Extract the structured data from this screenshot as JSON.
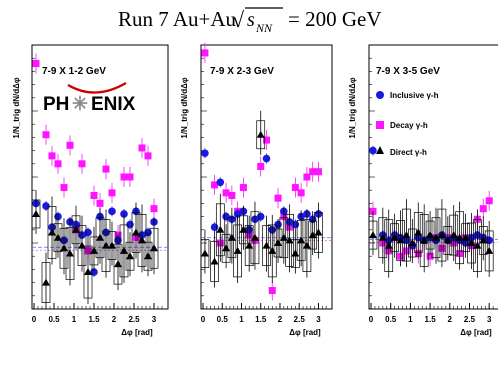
{
  "header": {
    "prefix": "Run 7 Au+Au",
    "sqrt_symbol": "√",
    "s": "s",
    "sub": "NN",
    "suffix": "= 200 GeV"
  },
  "logo": {
    "text_left": "PH",
    "text_right": "ENIX",
    "mid_symbol": "✳"
  },
  "colors": {
    "inclusive": "#1a1adf",
    "decay": "#ff14ff",
    "direct": "#000000",
    "frame": "#000000"
  },
  "chart_data": [
    {
      "type": "scatter",
      "title": "7-9 X 1-2 GeV",
      "xlabel": "Δφ [rad]",
      "ylabel": "1/N_trig dN/dΔφ",
      "xlim": [
        0,
        3.3
      ],
      "x_ticks": [
        "0",
        "0.5",
        "1",
        "1.5",
        "2",
        "2.5",
        "3"
      ],
      "y_tick_labels": false,
      "series": [
        {
          "symbol": "magenta-square",
          "x": [
            0.05,
            0.3,
            0.45,
            0.6,
            0.75,
            0.9,
            1.05,
            1.2,
            1.35,
            1.5,
            1.65,
            1.8,
            1.95,
            2.1,
            2.25,
            2.4,
            2.55,
            2.7,
            2.85,
            3.0
          ],
          "values": [
            0.93,
            0.66,
            0.58,
            0.55,
            0.46,
            0.62,
            0.3,
            0.55,
            0.22,
            0.43,
            0.4,
            0.53,
            0.44,
            0.28,
            0.5,
            0.5,
            0.27,
            0.61,
            0.58,
            0.38
          ]
        },
        {
          "symbol": "blue-circle",
          "x": [
            0.05,
            0.3,
            0.45,
            0.6,
            0.75,
            0.9,
            1.05,
            1.2,
            1.35,
            1.5,
            1.65,
            1.8,
            1.95,
            2.1,
            2.25,
            2.4,
            2.55,
            2.7,
            2.85,
            3.0
          ],
          "values": [
            0.4,
            0.39,
            0.31,
            0.35,
            0.26,
            0.33,
            0.32,
            0.28,
            0.29,
            0.14,
            0.35,
            0.29,
            0.37,
            0.26,
            0.36,
            0.32,
            0.37,
            0.28,
            0.29,
            0.33
          ]
        },
        {
          "symbol": "black-triangle",
          "x": [
            0.05,
            0.3,
            0.45,
            0.6,
            0.75,
            0.9,
            1.05,
            1.2,
            1.35,
            1.5,
            1.65,
            1.8,
            1.95,
            2.1,
            2.25,
            2.4,
            2.55,
            2.7,
            2.85,
            3.0
          ],
          "values": [
            0.36,
            0.1,
            0.29,
            0.27,
            0.23,
            0.21,
            0.3,
            0.24,
            0.14,
            0.22,
            0.27,
            0.24,
            0.24,
            0.17,
            0.22,
            0.2,
            0.29,
            0.26,
            0.2,
            0.23
          ]
        }
      ]
    },
    {
      "type": "scatter",
      "title": "7-9 X 2-3 GeV",
      "xlabel": "Δφ [rad]",
      "ylabel": "1/N_trig dN/dΔφ",
      "xlim": [
        0,
        3.3
      ],
      "x_ticks": [
        "0",
        "0.5",
        "1",
        "1.5",
        "2",
        "2.5",
        "3"
      ],
      "y_tick_labels": false,
      "series": [
        {
          "symbol": "magenta-square",
          "x": [
            0.05,
            0.3,
            0.45,
            0.6,
            0.75,
            0.9,
            1.05,
            1.2,
            1.35,
            1.5,
            1.65,
            1.8,
            1.95,
            2.1,
            2.25,
            2.4,
            2.55,
            2.7,
            2.85,
            3.0
          ],
          "values": [
            0.97,
            0.47,
            0.25,
            0.44,
            0.43,
            0.37,
            0.46,
            0.28,
            0.26,
            0.54,
            0.64,
            0.07,
            0.42,
            0.35,
            0.31,
            0.46,
            0.44,
            0.5,
            0.52,
            0.52
          ]
        },
        {
          "symbol": "blue-circle",
          "x": [
            0.05,
            0.3,
            0.45,
            0.6,
            0.75,
            0.9,
            1.05,
            1.2,
            1.35,
            1.5,
            1.65,
            1.8,
            1.95,
            2.1,
            2.25,
            2.4,
            2.55,
            2.7,
            2.85,
            3.0
          ],
          "values": [
            0.59,
            0.31,
            0.48,
            0.35,
            0.34,
            0.36,
            0.37,
            0.3,
            0.34,
            0.35,
            0.57,
            0.3,
            0.32,
            0.37,
            0.33,
            0.32,
            0.35,
            0.36,
            0.34,
            0.36
          ]
        },
        {
          "symbol": "black-triangle",
          "x": [
            0.05,
            0.3,
            0.45,
            0.6,
            0.75,
            0.9,
            1.05,
            1.2,
            1.35,
            1.5,
            1.65,
            1.8,
            1.95,
            2.1,
            2.25,
            2.4,
            2.55,
            2.7,
            2.85,
            3.0
          ],
          "values": [
            0.21,
            0.18,
            0.3,
            0.23,
            0.27,
            0.22,
            0.3,
            0.24,
            0.27,
            0.66,
            0.24,
            0.22,
            0.25,
            0.27,
            0.26,
            0.21,
            0.26,
            0.24,
            0.28,
            0.29
          ]
        }
      ]
    },
    {
      "type": "scatter",
      "title": "7-9 X 3-5 GeV",
      "xlabel": "Δφ [rad]",
      "ylabel": "1/N_trig dN/dΔφ",
      "xlim": [
        0,
        3.3
      ],
      "x_ticks": [
        "0",
        "0.5",
        "1",
        "1.5",
        "2",
        "2.5",
        "3"
      ],
      "y_tick_labels": false,
      "legend": [
        "Inclusive γ-h",
        "Decay γ-h",
        "Direct γ-h"
      ],
      "legend_placement": "top-right",
      "series": [
        {
          "name": "Decay γ-h",
          "symbol": "magenta-square",
          "x": [
            0.05,
            0.3,
            0.45,
            0.6,
            0.75,
            0.9,
            1.05,
            1.2,
            1.35,
            1.5,
            1.65,
            1.8,
            1.95,
            2.1,
            2.25,
            2.4,
            2.55,
            2.7,
            2.85,
            3.0
          ],
          "values": [
            0.37,
            0.25,
            0.22,
            0.27,
            0.2,
            0.22,
            0.24,
            0.21,
            0.26,
            0.2,
            0.27,
            0.23,
            0.27,
            0.25,
            0.21,
            0.27,
            0.24,
            0.34,
            0.38,
            0.41
          ]
        },
        {
          "name": "Inclusive γ-h",
          "symbol": "blue-circle",
          "x": [
            0.05,
            0.3,
            0.45,
            0.6,
            0.75,
            0.9,
            1.05,
            1.2,
            1.35,
            1.5,
            1.65,
            1.8,
            1.95,
            2.1,
            2.25,
            2.4,
            2.55,
            2.7,
            2.85,
            3.0
          ],
          "values": [
            0.6,
            0.28,
            0.26,
            0.28,
            0.27,
            0.26,
            0.24,
            0.27,
            0.26,
            0.27,
            0.26,
            0.28,
            0.26,
            0.27,
            0.26,
            0.25,
            0.27,
            0.28,
            0.27,
            0.26
          ]
        },
        {
          "name": "Direct γ-h",
          "symbol": "black-triangle",
          "x": [
            0.05,
            0.3,
            0.45,
            0.6,
            0.75,
            0.9,
            1.05,
            1.2,
            1.35,
            1.5,
            1.65,
            1.8,
            1.95,
            2.1,
            2.25,
            2.4,
            2.55,
            2.7,
            2.85,
            3.0
          ],
          "values": [
            0.28,
            0.27,
            0.24,
            0.27,
            0.26,
            0.28,
            0.25,
            0.29,
            0.26,
            0.28,
            0.27,
            0.28,
            0.26,
            0.28,
            0.27,
            0.27,
            0.25,
            0.24,
            0.26,
            0.22
          ]
        }
      ]
    }
  ]
}
